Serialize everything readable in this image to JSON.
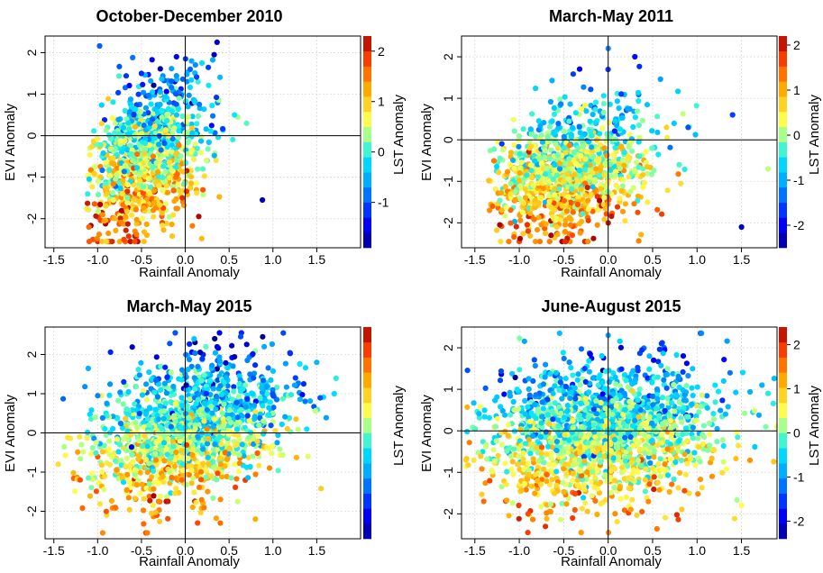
{
  "chart_data": [
    {
      "type": "scatter",
      "title": "October-December 2010",
      "xlabel": "Rainfall Anomaly",
      "ylabel": "EVI Anomaly",
      "colorbar_label": "LST Anomaly",
      "xlim": [
        -1.6,
        2.0
      ],
      "ylim": [
        -2.7,
        2.4
      ],
      "xticks": [
        -1.5,
        -1.0,
        -0.5,
        0.0,
        0.5,
        1.0,
        1.5
      ],
      "xtick_labels": [
        "-1.5",
        "-1.0",
        "-0.5",
        "0.0",
        "0.5",
        "1.0",
        "1.5"
      ],
      "yticks": [
        -2,
        -1,
        0,
        1,
        2
      ],
      "ytick_labels": [
        "-2",
        "-1",
        "0",
        "1",
        "2"
      ],
      "colorbar_range": [
        -1.9,
        2.3
      ],
      "colorbar_ticks": [
        -1,
        0,
        1,
        2
      ],
      "colorbar_tick_labels": [
        "-1",
        "0",
        "1",
        "2"
      ],
      "grid": true,
      "reference_lines": {
        "x": 0,
        "y": 0
      },
      "points_note": "about 1200 points; x mostly -1.15 to 0.6, y mostly -2.3 to 1.7; lower-left points warm (positive LST), upper points cool (negative LST)",
      "points_sample": [
        {
          "x": -1.1,
          "y": -2.2,
          "c": 1.6
        },
        {
          "x": -0.7,
          "y": -2.5,
          "c": 1.8
        },
        {
          "x": -0.9,
          "y": -1.4,
          "c": 1.0
        },
        {
          "x": -0.6,
          "y": -0.6,
          "c": 0.3
        },
        {
          "x": -0.4,
          "y": 0.3,
          "c": -0.8
        },
        {
          "x": -0.5,
          "y": 1.5,
          "c": -1.2
        },
        {
          "x": -0.1,
          "y": 1.9,
          "c": -1.5
        },
        {
          "x": 0.33,
          "y": 1.95,
          "c": -1.7
        },
        {
          "x": 0.88,
          "y": -1.55,
          "c": -1.7
        },
        {
          "x": 0.7,
          "y": 0.3,
          "c": 0.1
        },
        {
          "x": 0.2,
          "y": -0.8,
          "c": 0.1
        },
        {
          "x": -0.3,
          "y": -1.2,
          "c": 0.8
        }
      ]
    },
    {
      "type": "scatter",
      "title": "March-May 2011",
      "xlabel": "Rainfall Anomaly",
      "ylabel": "EVI Anomaly",
      "colorbar_label": "LST Anomaly",
      "xlim": [
        -1.65,
        1.9
      ],
      "ylim": [
        -2.6,
        2.5
      ],
      "xticks": [
        -1.5,
        -1.0,
        -0.5,
        0.0,
        0.5,
        1.0,
        1.5
      ],
      "xtick_labels": [
        "-1.5",
        "-1.0",
        "-0.5",
        "0.0",
        "0.5",
        "1.0",
        "1.5"
      ],
      "yticks": [
        -2,
        -1,
        0,
        1,
        2
      ],
      "ytick_labels": [
        "-2",
        "-1",
        "0",
        "1",
        "2"
      ],
      "colorbar_range": [
        -2.5,
        2.2
      ],
      "colorbar_ticks": [
        -2,
        -1,
        0,
        1,
        2
      ],
      "colorbar_tick_labels": [
        "-2",
        "-1",
        "0",
        "1",
        "2"
      ],
      "grid": true,
      "reference_lines": {
        "x": 0,
        "y": 0
      },
      "points_note": "about 1300 points; x mostly -1.3 to 1.0, y mostly -2.3 to 1.5; warm colors at low rainfall and low EVI, cool colors at high EVI",
      "points_sample": [
        {
          "x": -1.3,
          "y": -1.6,
          "c": 1.5
        },
        {
          "x": -0.9,
          "y": -2.2,
          "c": 1.7
        },
        {
          "x": -0.5,
          "y": -1.0,
          "c": 0.6
        },
        {
          "x": -0.2,
          "y": 0.2,
          "c": -0.4
        },
        {
          "x": 0.0,
          "y": 2.2,
          "c": -1.2
        },
        {
          "x": 0.3,
          "y": 2.0,
          "c": -1.9
        },
        {
          "x": 1.4,
          "y": 0.6,
          "c": -1.6
        },
        {
          "x": 1.5,
          "y": -2.1,
          "c": -2.2
        },
        {
          "x": 0.0,
          "y": -2.0,
          "c": 2.0
        },
        {
          "x": 1.8,
          "y": -0.7,
          "c": 0.1
        },
        {
          "x": 0.8,
          "y": -0.6,
          "c": -0.3
        },
        {
          "x": 0.9,
          "y": 0.3,
          "c": -1.5
        }
      ]
    },
    {
      "type": "scatter",
      "title": "March-May 2015",
      "xlabel": "Rainfall Anomaly",
      "ylabel": "EVI Anomaly",
      "colorbar_label": "LST Anomaly",
      "xlim": [
        -1.6,
        2.0
      ],
      "ylim": [
        -2.7,
        2.7
      ],
      "xticks": [
        -1.5,
        -1.0,
        -0.5,
        0.0,
        0.5,
        1.0,
        1.5
      ],
      "xtick_labels": [
        "-1.5",
        "-1.0",
        "-0.5",
        "0.0",
        "0.5",
        "1.0",
        "1.5"
      ],
      "yticks": [
        -2,
        -1,
        0,
        1,
        2
      ],
      "ytick_labels": [
        "-2",
        "-1",
        "0",
        "1",
        "2"
      ],
      "colorbar_range": [
        -2.5,
        2.2
      ],
      "colorbar_ticks": [],
      "colorbar_tick_labels": [],
      "grid": true,
      "reference_lines": {
        "x": 0,
        "y": 0
      },
      "points_note": "about 1700 points; x mostly -1.3 to 1.8, y mostly -2.3 to 2.5; warm colors at low EVI, cool colors at high EVI",
      "points_sample": [
        {
          "x": -1.45,
          "y": -0.8,
          "c": 0.6
        },
        {
          "x": -1.2,
          "y": -1.2,
          "c": 1.6
        },
        {
          "x": -0.8,
          "y": -1.9,
          "c": 1.4
        },
        {
          "x": -0.3,
          "y": -0.2,
          "c": 0.4
        },
        {
          "x": 0.1,
          "y": 2.4,
          "c": -0.8
        },
        {
          "x": 0.4,
          "y": 1.2,
          "c": -1.2
        },
        {
          "x": 0.9,
          "y": 2.2,
          "c": -1.0
        },
        {
          "x": 1.5,
          "y": 1.8,
          "c": -0.9
        },
        {
          "x": 1.7,
          "y": 1.0,
          "c": -0.6
        },
        {
          "x": 0.4,
          "y": -2.3,
          "c": 1.4
        },
        {
          "x": 0.8,
          "y": -2.2,
          "c": 1.0
        },
        {
          "x": 1.4,
          "y": -0.6,
          "c": 0.2
        }
      ]
    },
    {
      "type": "scatter",
      "title": "June-August 2015",
      "xlabel": "Rainfall Anomaly",
      "ylabel": "EVI Anomaly",
      "colorbar_label": "LST Anomaly",
      "xlim": [
        -1.65,
        1.9
      ],
      "ylim": [
        -2.6,
        2.5
      ],
      "xticks": [
        -1.5,
        -1.0,
        -0.5,
        0.0,
        0.5,
        1.0,
        1.5
      ],
      "xtick_labels": [
        "-1.5",
        "-1.0",
        "-0.5",
        "0.0",
        "0.5",
        "1.0",
        "1.5"
      ],
      "yticks": [
        -2,
        -1,
        0,
        1,
        2
      ],
      "ytick_labels": [
        "-2",
        "-1",
        "0",
        "1",
        "2"
      ],
      "colorbar_range": [
        -2.4,
        2.4
      ],
      "colorbar_ticks": [
        -2,
        -1,
        0,
        1,
        2
      ],
      "colorbar_tick_labels": [
        "-2",
        "-1",
        "0",
        "1",
        "2"
      ],
      "grid": true,
      "reference_lines": {
        "x": 0,
        "y": 0
      },
      "points_note": "about 2000 points; x mostly -1.6 to 1.9, y mostly -2.2 to 2.4; warm colors at low EVI, cool colors at high EVI",
      "points_sample": [
        {
          "x": -1.6,
          "y": -0.7,
          "c": 0.9
        },
        {
          "x": -1.4,
          "y": -1.7,
          "c": 1.6
        },
        {
          "x": -0.9,
          "y": -2.0,
          "c": 1.8
        },
        {
          "x": -0.4,
          "y": -2.1,
          "c": 1.9
        },
        {
          "x": -0.3,
          "y": 0.1,
          "c": 0.2
        },
        {
          "x": 0.0,
          "y": 2.3,
          "c": -0.9
        },
        {
          "x": 0.6,
          "y": 2.1,
          "c": -1.5
        },
        {
          "x": 1.3,
          "y": 1.2,
          "c": -0.6
        },
        {
          "x": 1.9,
          "y": 0.1,
          "c": 0.4
        },
        {
          "x": 1.8,
          "y": 0.9,
          "c": -0.3
        },
        {
          "x": 1.5,
          "y": -1.8,
          "c": 0.5
        },
        {
          "x": 0.5,
          "y": -0.9,
          "c": 0.7
        }
      ]
    }
  ]
}
